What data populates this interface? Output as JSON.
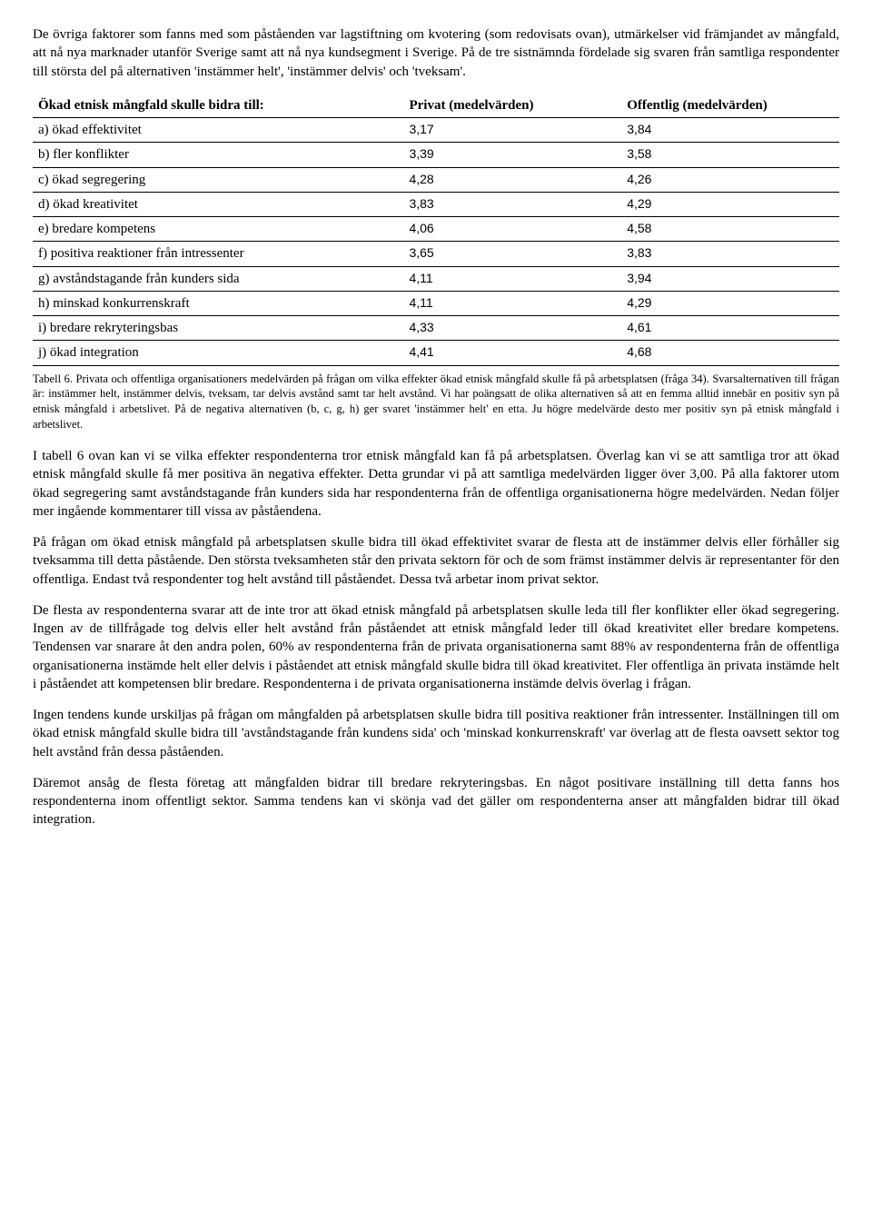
{
  "paragraphs": {
    "p1": "De övriga faktorer som fanns med som påståenden var lagstiftning om kvotering (som redovisats ovan), utmärkelser vid främjandet av mångfald, att nå nya marknader utanför Sverige samt att nå nya kundsegment i Sverige. På de tre sistnämnda fördelade sig svaren från samtliga respondenter till största del på alternativen 'instämmer helt', 'instämmer delvis' och 'tveksam'.",
    "p2": "I tabell 6 ovan kan vi se vilka effekter respondenterna tror etnisk mångfald kan få på arbetsplatsen. Överlag kan vi se att samtliga tror att ökad etnisk mångfald skulle få mer positiva än negativa effekter. Detta grundar vi på att samtliga medelvärden ligger över 3,00. På alla faktorer utom ökad segregering samt avståndstagande från kunders sida har respondenterna från de offentliga organisationerna högre medelvärden. Nedan följer mer ingående kommentarer till vissa av påståendena.",
    "p3": "På frågan om ökad etnisk mångfald på arbetsplatsen skulle bidra till ökad effektivitet svarar de flesta att de instämmer delvis eller förhåller sig tveksamma till detta påstående. Den största tveksamheten står den privata sektorn för och de som främst instämmer delvis är representanter för den offentliga. Endast två respondenter tog helt avstånd till påståendet. Dessa två arbetar inom privat sektor.",
    "p4": "De flesta av respondenterna svarar att de inte tror att ökad etnisk mångfald på arbetsplatsen skulle leda till fler konflikter eller ökad segregering. Ingen av de tillfrågade tog delvis eller helt avstånd från påståendet att etnisk mångfald leder till ökad kreativitet eller bredare kompetens. Tendensen var snarare åt den andra polen, 60% av respondenterna från de privata organisationerna samt 88% av respondenterna från de offentliga organisationerna instämde helt eller delvis i påståendet att etnisk mångfald skulle bidra till ökad kreativitet. Fler offentliga än privata instämde helt i påståendet att kompetensen blir bredare. Respondenterna i de privata organisationerna instämde delvis överlag i frågan.",
    "p5": "Ingen tendens kunde urskiljas på frågan om mångfalden på arbetsplatsen skulle bidra till positiva reaktioner från intressenter. Inställningen till om ökad etnisk mångfald skulle bidra till 'avståndstagande från kundens sida' och 'minskad konkurrenskraft' var överlag att de flesta oavsett sektor tog helt avstånd från dessa påståenden.",
    "p6": "Däremot ansåg de flesta företag att mångfalden bidrar till bredare rekryteringsbas. En något positivare inställning till detta fanns hos respondenterna inom offentligt sektor. Samma tendens kan vi skönja vad det gäller om respondenterna anser att mångfalden bidrar till ökad integration."
  },
  "table": {
    "header_col1": "Ökad etnisk mångfald skulle bidra till:",
    "header_col2": "Privat (medelvärden)",
    "header_col3": "Offentlig (medelvärden)",
    "rows": [
      {
        "label": "a) ökad effektivitet",
        "privat": "3,17",
        "offentlig": "3,84"
      },
      {
        "label": "b) fler konflikter",
        "privat": "3,39",
        "offentlig": "3,58"
      },
      {
        "label": "c) ökad segregering",
        "privat": "4,28",
        "offentlig": "4,26"
      },
      {
        "label": "d) ökad kreativitet",
        "privat": "3,83",
        "offentlig": "4,29"
      },
      {
        "label": "e) bredare kompetens",
        "privat": "4,06",
        "offentlig": "4,58"
      },
      {
        "label": "f) positiva reaktioner från intressenter",
        "privat": "3,65",
        "offentlig": "3,83"
      },
      {
        "label": "g) avståndstagande från kunders sida",
        "privat": "4,11",
        "offentlig": "3,94"
      },
      {
        "label": "h) minskad konkurrenskraft",
        "privat": "4,11",
        "offentlig": "4,29"
      },
      {
        "label": "i) bredare rekryteringsbas",
        "privat": "4,33",
        "offentlig": "4,61"
      },
      {
        "label": "j) ökad integration",
        "privat": "4,41",
        "offentlig": "4,68"
      }
    ]
  },
  "caption": "Tabell 6. Privata och offentliga organisationers medelvärden på frågan om vilka effekter ökad etnisk mångfald skulle få på arbetsplatsen (fråga 34). Svarsalternativen till frågan är: instämmer helt, instämmer delvis, tveksam, tar delvis avstånd samt tar helt avstånd. Vi har poängsatt de olika alternativen så att en femma alltid innebär en positiv syn på etnisk mångfald i arbetslivet. På de negativa alternativen (b, c, g, h) ger svaret 'instämmer helt' en etta. Ju högre medelvärde desto mer positiv syn på etnisk mångfald i arbetslivet."
}
